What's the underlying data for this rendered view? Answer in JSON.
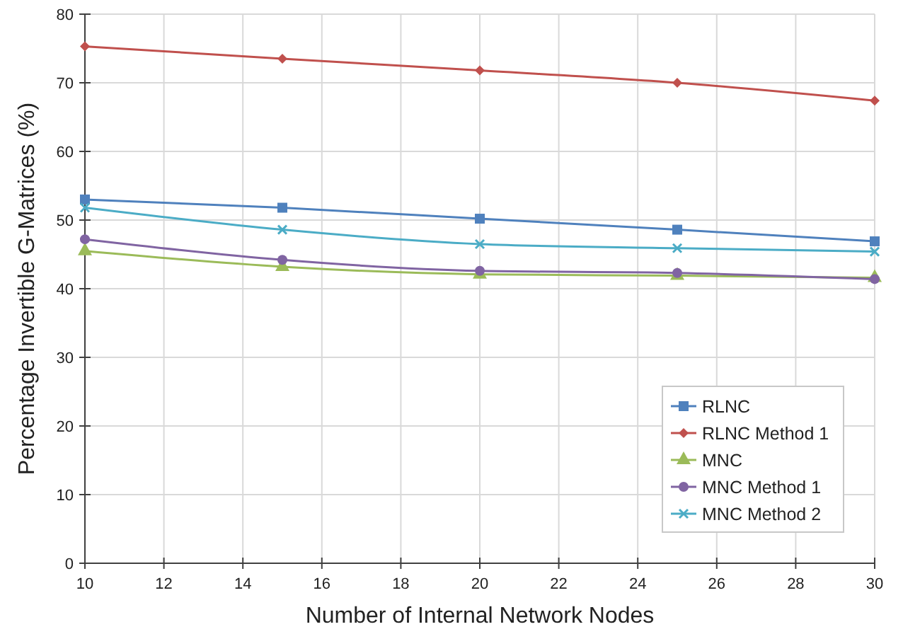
{
  "chart_data": {
    "type": "line",
    "xlabel": "Number of Internal Network Nodes",
    "ylabel": "Percentage Invertible G-Matrices (%)",
    "x": [
      10,
      15,
      20,
      25,
      30
    ],
    "xlim": [
      10,
      30
    ],
    "xticks": [
      10,
      12,
      14,
      16,
      18,
      20,
      22,
      24,
      26,
      28,
      30
    ],
    "ylim": [
      0,
      80
    ],
    "yticks": [
      0,
      10,
      20,
      30,
      40,
      50,
      60,
      70,
      80
    ],
    "grid": true,
    "legend": "bottom right",
    "series": [
      {
        "name": "RLNC",
        "color": "#4f81bd",
        "marker": "square",
        "values": [
          53.0,
          51.8,
          50.2,
          48.6,
          46.9
        ]
      },
      {
        "name": "RLNC Method 1",
        "color": "#c0504d",
        "marker": "diamond",
        "values": [
          75.3,
          73.5,
          71.8,
          70.0,
          67.4
        ]
      },
      {
        "name": "MNC",
        "color": "#9bbb59",
        "marker": "triangle",
        "values": [
          45.5,
          43.2,
          42.1,
          41.9,
          41.6
        ]
      },
      {
        "name": "MNC Method 1",
        "color": "#8064a2",
        "marker": "circle",
        "values": [
          47.2,
          44.2,
          42.6,
          42.3,
          41.4
        ]
      },
      {
        "name": "MNC Method 2",
        "color": "#4bacc6",
        "marker": "cross",
        "values": [
          51.8,
          48.6,
          46.5,
          45.9,
          45.4
        ]
      }
    ]
  }
}
